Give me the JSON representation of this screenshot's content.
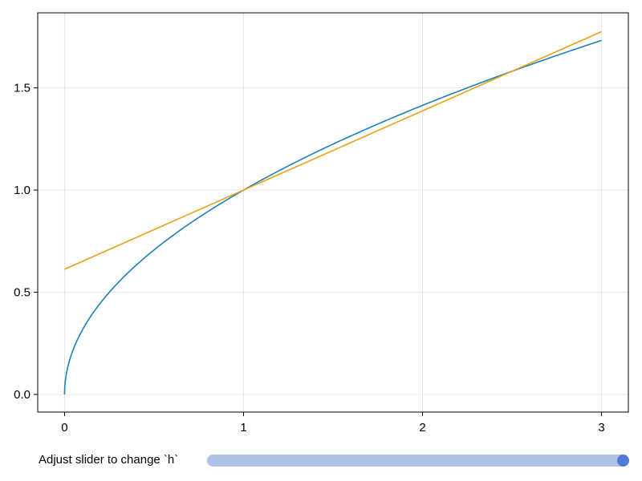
{
  "chart_data": {
    "type": "line",
    "title": "",
    "xlabel": "",
    "ylabel": "",
    "xlim": [
      -0.15,
      3.15
    ],
    "ylim": [
      -0.086,
      1.867
    ],
    "xticks": [
      "0",
      "1",
      "2",
      "3"
    ],
    "yticks": [
      "0.0",
      "0.5",
      "1.0",
      "1.5"
    ],
    "grid": true,
    "series": [
      {
        "function": "sqrt(x)",
        "x_range": [
          0,
          3
        ],
        "color": "#1f80b8"
      },
      {
        "function": "secant of sqrt through x=1 and x=1+h",
        "x_range": [
          0,
          3
        ],
        "color": "#e6a117",
        "h": 1.5
      }
    ]
  },
  "slider": {
    "label": "Adjust slider to change `h`",
    "value_fraction": 1.0,
    "track_color": "#afc1e6",
    "knob_color": "#4f7bd6"
  }
}
